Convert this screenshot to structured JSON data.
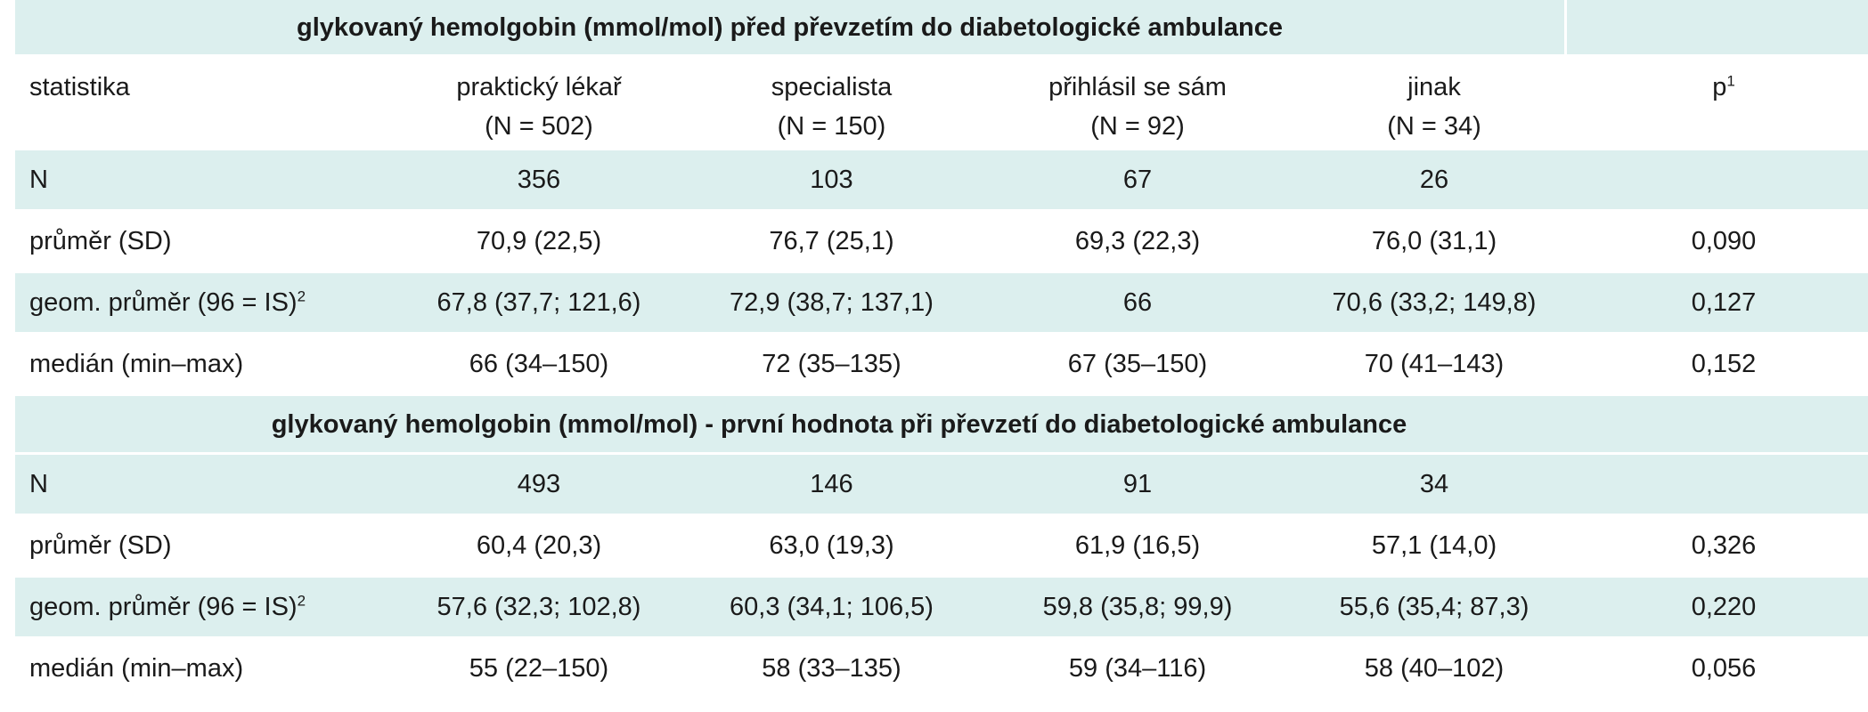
{
  "section1": {
    "title": "glykovaný hemolgobin (mmol/mol) před převzetím do diabetologické ambulance"
  },
  "section2": {
    "title": "glykovaný hemolgobin (mmol/mol) - první hodnota při převzetí do diabetologické ambulance"
  },
  "header": {
    "statistika": "statistika",
    "col1_name": "praktický lékař",
    "col1_n": "(N = 502)",
    "col2_name": "specialista",
    "col2_n": "(N = 150)",
    "col3_name": "přihlásil se sám",
    "col3_n": "(N = 92)",
    "col4_name": "jinak",
    "col4_n": "(N = 34)",
    "p_label": "p",
    "p_sup": "1"
  },
  "rows1": [
    {
      "label": "N",
      "sup": "",
      "v1": "356",
      "v2": "103",
      "v3": "67",
      "v4": "26",
      "p": ""
    },
    {
      "label": "průměr (SD)",
      "sup": "",
      "v1": "70,9 (22,5)",
      "v2": "76,7 (25,1)",
      "v3": "69,3 (22,3)",
      "v4": "76,0 (31,1)",
      "p": "0,090"
    },
    {
      "label": "geom. průměr (96 = IS)",
      "sup": "2",
      "v1": "67,8 (37,7; 121,6)",
      "v2": "72,9 (38,7; 137,1)",
      "v3": "66",
      "v4": "70,6 (33,2; 149,8)",
      "p": "0,127"
    },
    {
      "label": "medián (min–max)",
      "sup": "",
      "v1": "66 (34–150)",
      "v2": "72 (35–135)",
      "v3": "67 (35–150)",
      "v4": "70 (41–143)",
      "p": "0,152"
    }
  ],
  "rows2": [
    {
      "label": "N",
      "sup": "",
      "v1": "493",
      "v2": "146",
      "v3": "91",
      "v4": "34",
      "p": ""
    },
    {
      "label": "průměr (SD)",
      "sup": "",
      "v1": "60,4 (20,3)",
      "v2": "63,0 (19,3)",
      "v3": "61,9 (16,5)",
      "v4": "57,1 (14,0)",
      "p": "0,326"
    },
    {
      "label": "geom. průměr (96 = IS)",
      "sup": "2",
      "v1": "57,6 (32,3; 102,8)",
      "v2": "60,3 (34,1; 106,5)",
      "v3": "59,8 (35,8; 99,9)",
      "v4": "55,6 (35,4; 87,3)",
      "p": "0,220"
    },
    {
      "label": "medián (min–max)",
      "sup": "",
      "v1": "55 (22–150)",
      "v2": "58 (33–135)",
      "v3": "59 (34–116)",
      "v4": "58 (40–102)",
      "p": "0,056"
    }
  ]
}
